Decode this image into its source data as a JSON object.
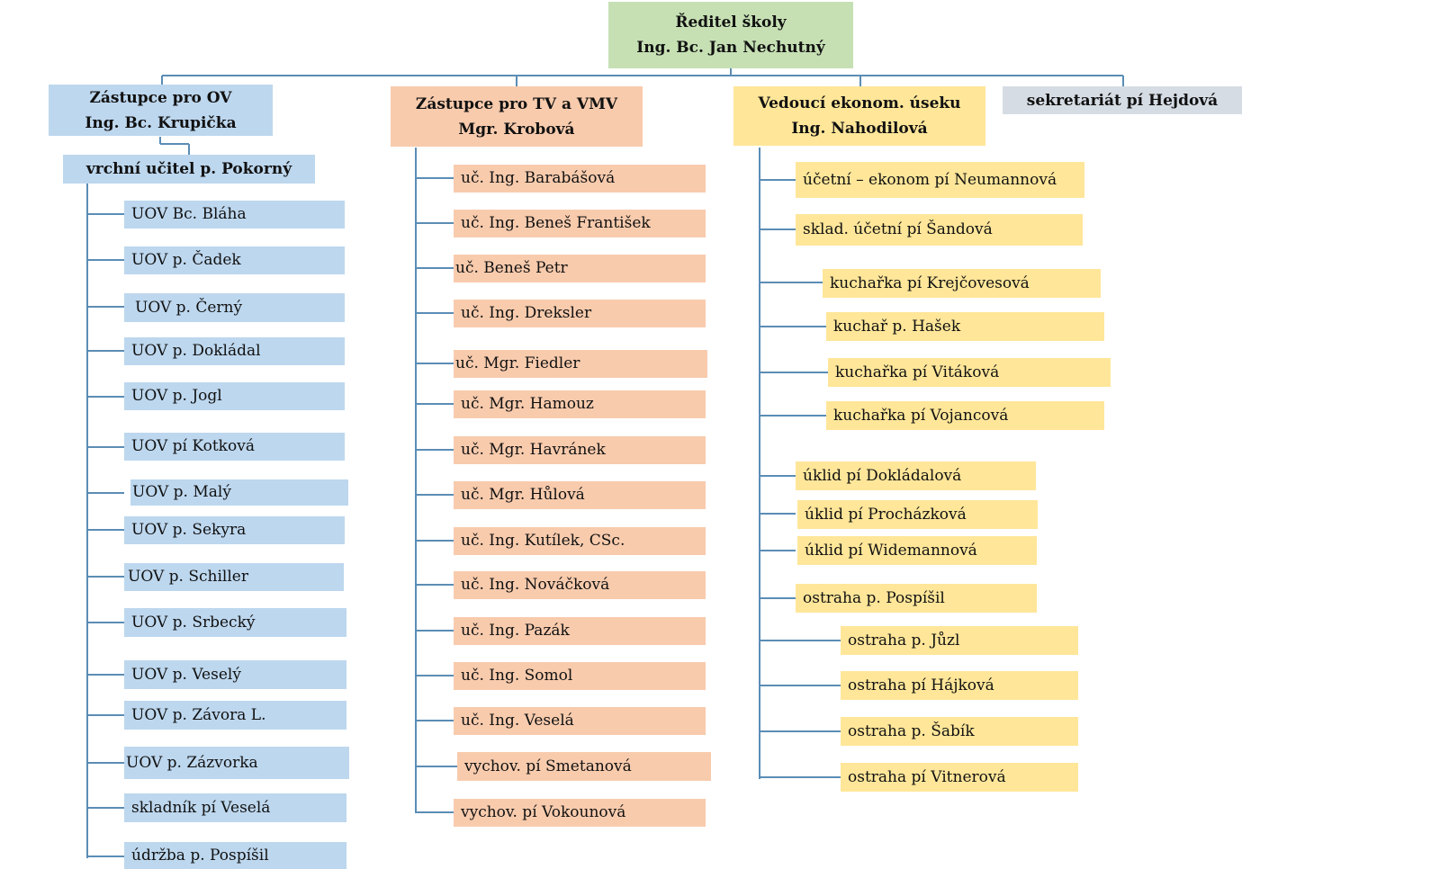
{
  "director": {
    "line1": "Ředitel školy",
    "line2": "Ing. Bc. Jan Nechutný"
  },
  "deputy_ov": {
    "line1": "Zástupce pro OV",
    "line2": "Ing. Bc. Krupička"
  },
  "deputy_tv": {
    "line1": "Zástupce pro TV a VMV",
    "line2": "Mgr. Krobová"
  },
  "econ_head": {
    "line1": "Vedoucí ekonom. úseku",
    "line2": "Ing. Nahodilová"
  },
  "secretariat": {
    "label": "sekretariát pí Hejdová"
  },
  "chief_teacher": {
    "label": "vrchní učitel p. Pokorný"
  },
  "ov_staff": [
    "UOV Bc. Bláha",
    "UOV p. Čadek",
    "UOV p. Černý",
    "UOV p. Dokládal",
    "UOV p. Jogl",
    "UOV pí Kotková",
    "UOV p. Malý",
    "UOV p. Sekyra",
    "UOV p. Schiller",
    "UOV p. Srbecký",
    "UOV p. Veselý",
    "UOV p. Závora L.",
    "UOV p. Zázvorka",
    "skladník pí Veselá",
    "údržba p. Pospíšil"
  ],
  "tv_staff": [
    "uč. Ing. Barabášová",
    "uč. Ing. Beneš František",
    "uč. Beneš Petr",
    "uč. Ing. Dreksler",
    "uč. Mgr. Fiedler",
    "uč. Mgr. Hamouz",
    "uč. Mgr. Havránek",
    "uč. Mgr.  Hůlová",
    "uč. Ing. Kutílek, CSc.",
    "uč. Ing. Nováčková",
    "uč. Ing. Pazák",
    "uč. Ing. Somol",
    "uč. Ing. Veselá",
    "vychov.  pí Smetanová",
    "vychov. pí Vokounová"
  ],
  "econ_staff": [
    "účetní – ekonom pí  Neumannová",
    "sklad. účetní pí Šandová",
    "kuchařka pí Krejčovesová",
    "kuchař p. Hašek",
    "kuchařka pí Vitáková",
    "kuchařka pí Vojancová",
    "úklid pí Dokládalová",
    "úklid pí Procházková",
    "úklid pí Widemannová",
    "ostraha p. Pospíšil",
    "ostraha p. Jůzl",
    "ostraha pí Hájková",
    "ostraha p. Šabík",
    "ostraha pí Vitnerová"
  ],
  "colors": {
    "blue": "#bdd7ee",
    "orange": "#f8cbad",
    "yellow": "#ffe699",
    "green": "#c6e0b4",
    "gray": "#d6dce4",
    "connector": "#5b8db5"
  }
}
